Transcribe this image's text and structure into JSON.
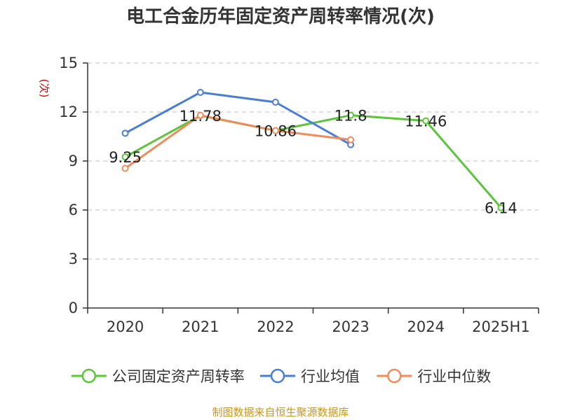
{
  "colors": {
    "source_text": "#c8961e",
    "ylabel": "#d00000",
    "axis": "#333333",
    "grid": "#cccccc"
  },
  "chart_data": {
    "type": "line",
    "title": "电工合金历年固定资产周转率情况(次)",
    "ylabel": "(次)",
    "xlabel": "",
    "categories": [
      "2020",
      "2021",
      "2022",
      "2023",
      "2024",
      "2025H1"
    ],
    "ylim": [
      0,
      15
    ],
    "yticks": [
      0,
      3,
      6,
      9,
      12,
      15
    ],
    "grid": true,
    "legend_position": "bottom",
    "series": [
      {
        "name": "公司固定资产周转率",
        "color": "#5cc43a",
        "values": [
          9.25,
          11.78,
          10.86,
          11.8,
          11.46,
          6.14
        ],
        "labels": [
          "9.25",
          "11.78",
          "10.86",
          "11.8",
          "11.46",
          "6.14"
        ]
      },
      {
        "name": "行业均值",
        "color": "#4a7ed6",
        "values": [
          10.7,
          13.2,
          12.6,
          10.0,
          null,
          null
        ]
      },
      {
        "name": "行业中位数",
        "color": "#f08c5c",
        "values": [
          8.55,
          11.8,
          10.86,
          10.3,
          null,
          null
        ]
      }
    ]
  },
  "source": "制图数据来自恒生聚源数据库"
}
